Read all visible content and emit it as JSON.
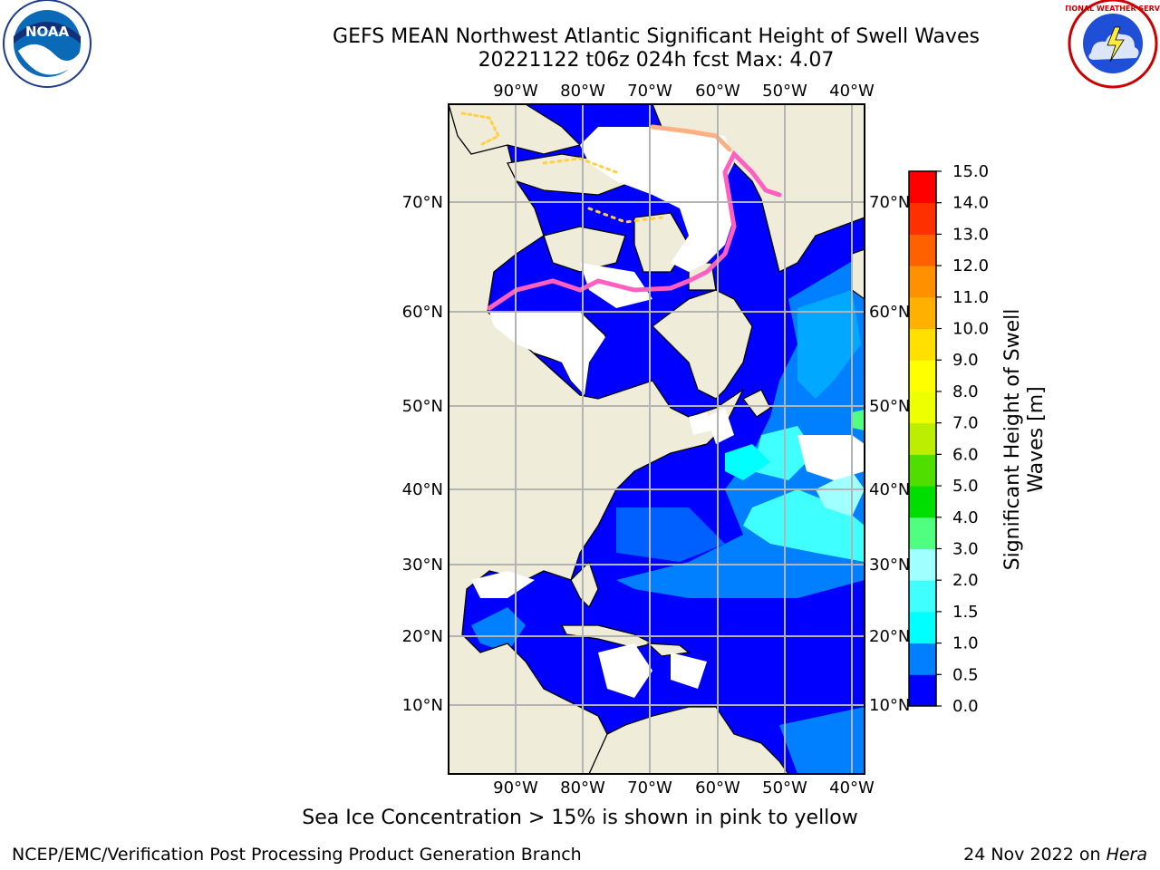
{
  "title": {
    "line1": "GEFS MEAN Northwest Atlantic Significant Height of Swell Waves",
    "line2": "20221122 t06z 024h fcst   Max: 4.07"
  },
  "map": {
    "region": "Northwest Atlantic",
    "lon_ticks": [
      "90°W",
      "80°W",
      "70°W",
      "60°W",
      "50°W",
      "40°W"
    ],
    "lat_ticks": [
      "70°N",
      "60°N",
      "50°N",
      "40°N",
      "30°N",
      "20°N",
      "10°N"
    ],
    "colors": {
      "land": "#efecda",
      "ice": "#ffffff",
      "grid": "#b4b4b4",
      "coast": "#000000"
    }
  },
  "colorbar": {
    "label": "Significant Height of Swell Waves [m]",
    "ticks": [
      "0.0",
      "0.5",
      "1.0",
      "1.5",
      "2.0",
      "3.0",
      "4.0",
      "5.0",
      "6.0",
      "7.0",
      "8.0",
      "9.0",
      "10.0",
      "11.0",
      "12.0",
      "13.0",
      "14.0",
      "15.0"
    ],
    "colors": [
      "#0000ff",
      "#0080ff",
      "#00ffff",
      "#40ffff",
      "#a0ffff",
      "#50ff80",
      "#00dd00",
      "#50dd00",
      "#bbee00",
      "#eeff00",
      "#ffff00",
      "#ffe000",
      "#ffb000",
      "#ff9000",
      "#ff6000",
      "#ff3000",
      "#ff0000"
    ]
  },
  "note": "Sea Ice Concentration > 15% is shown in pink to yellow",
  "footer": {
    "left": "NCEP/EMC/Verification Post Processing Product Generation Branch",
    "right_prefix": "24 Nov 2022 on ",
    "right_host": "Hera"
  },
  "logos": {
    "noaa": "NOAA",
    "nws_ring": "NATIONAL WEATHER SERVICE"
  }
}
